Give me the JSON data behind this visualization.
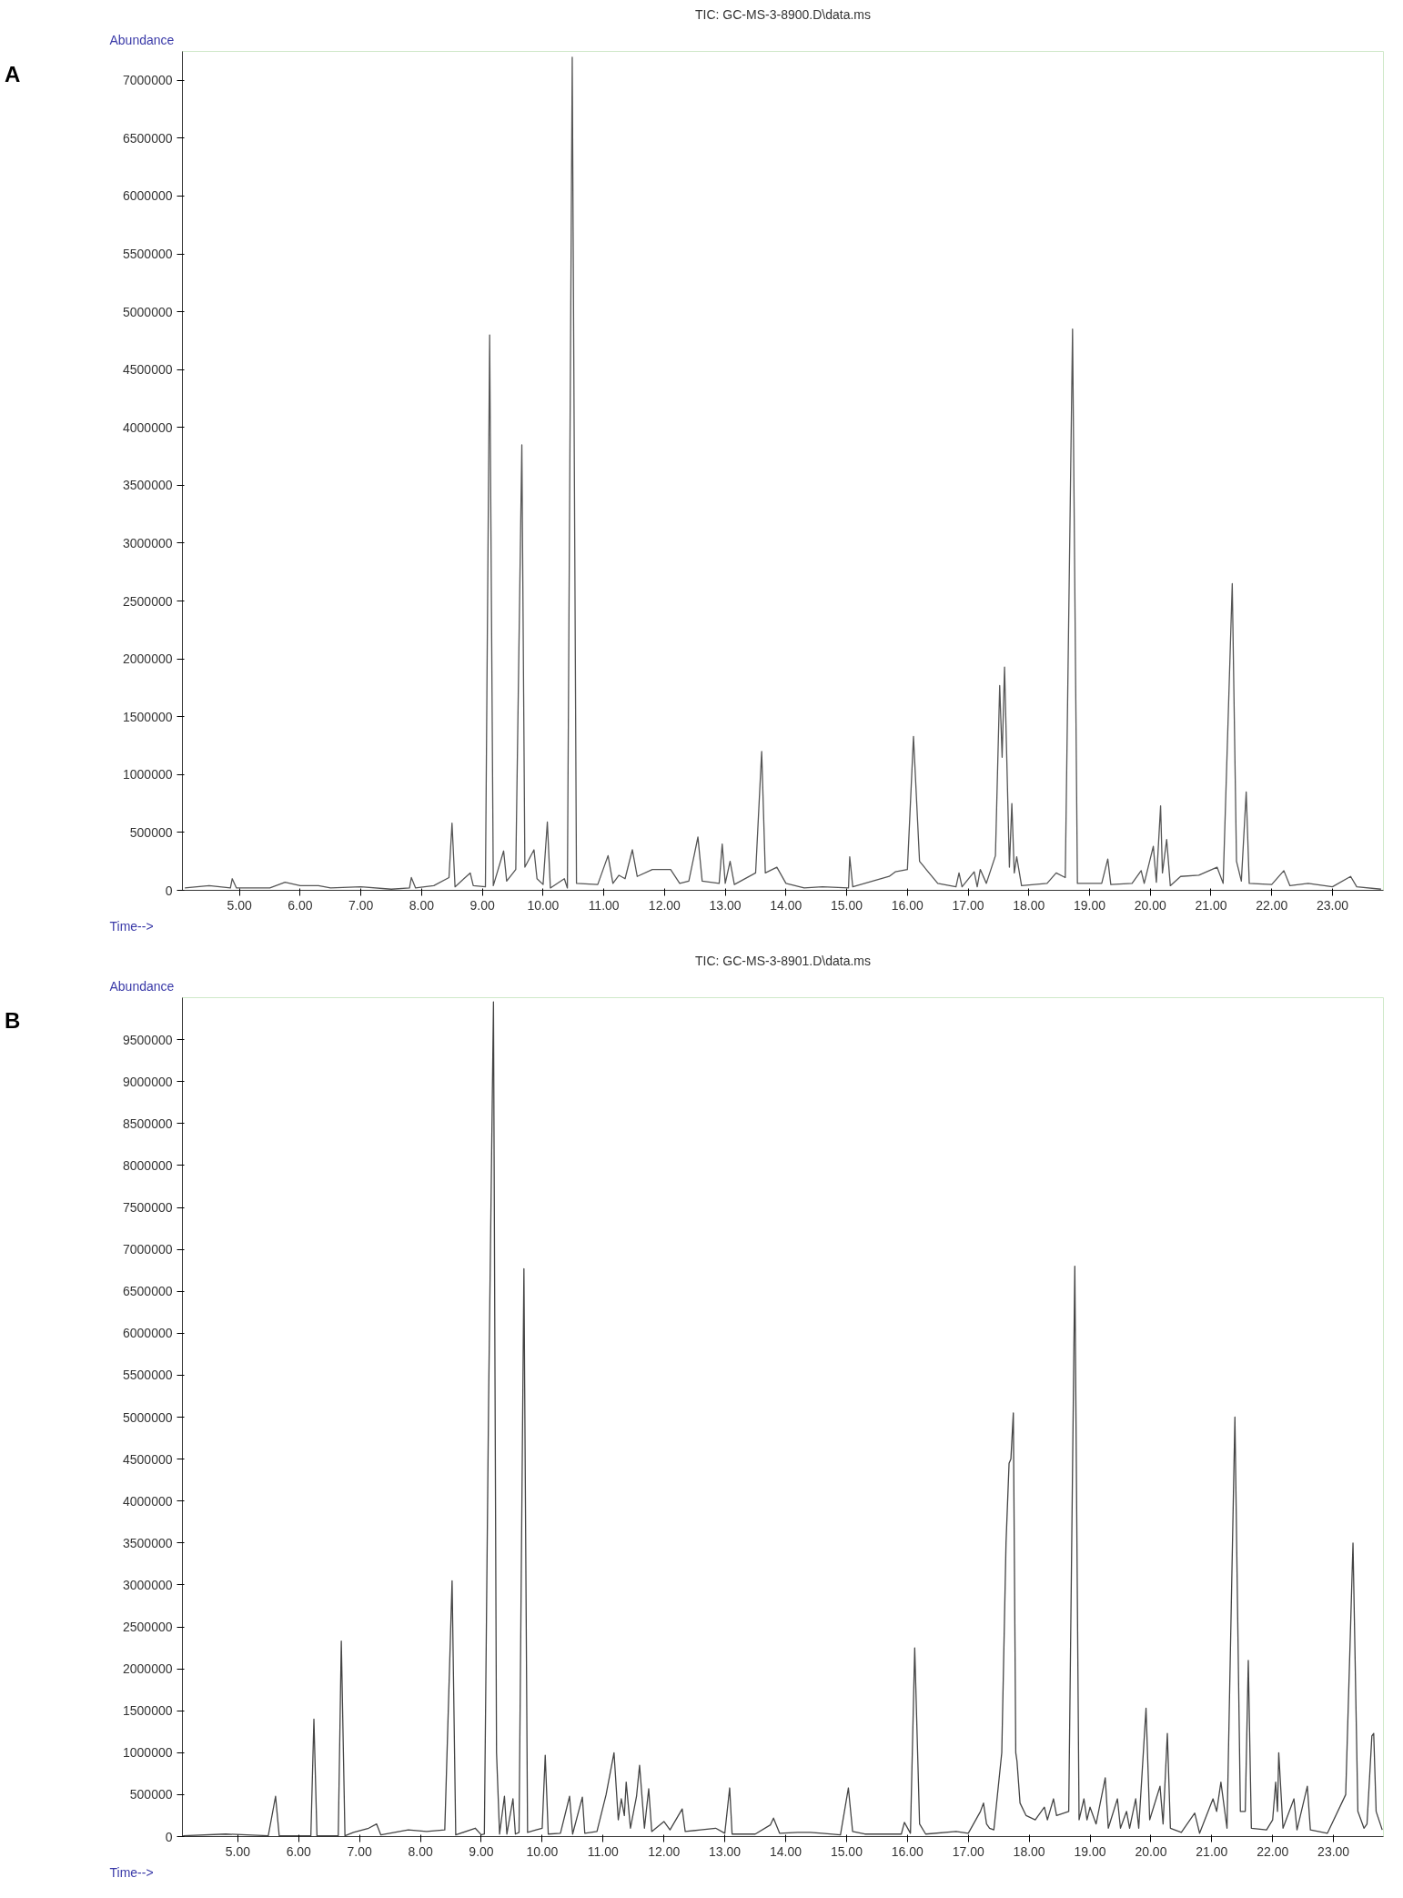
{
  "chart_data": [
    {
      "type": "line",
      "title": "TIC: GC-MS-3-8900.D\\data.ms",
      "xlabel": "Time-->",
      "ylabel": "Abundance",
      "annotations": [
        "A"
      ],
      "grid": false,
      "marker": "none",
      "line_style": "solid",
      "xlim": [
        4.06,
        23.84
      ],
      "ylim": [
        0,
        7250000
      ],
      "xticks": [
        {
          "value": 5,
          "label": "5.00"
        },
        {
          "value": 6,
          "label": "6.00"
        },
        {
          "value": 7,
          "label": "7.00"
        },
        {
          "value": 8,
          "label": "8.00"
        },
        {
          "value": 9,
          "label": "9.00"
        },
        {
          "value": 10,
          "label": "10.00"
        },
        {
          "value": 11,
          "label": "11.00"
        },
        {
          "value": 12,
          "label": "12.00"
        },
        {
          "value": 13,
          "label": "13.00"
        },
        {
          "value": 14,
          "label": "14.00"
        },
        {
          "value": 15,
          "label": "15.00"
        },
        {
          "value": 16,
          "label": "16.00"
        },
        {
          "value": 17,
          "label": "17.00"
        },
        {
          "value": 18,
          "label": "18.00"
        },
        {
          "value": 19,
          "label": "19.00"
        },
        {
          "value": 20,
          "label": "20.00"
        },
        {
          "value": 21,
          "label": "21.00"
        },
        {
          "value": 22,
          "label": "22.00"
        },
        {
          "value": 23,
          "label": "23.00"
        }
      ],
      "yticks": [
        0,
        500000,
        1000000,
        1500000,
        2000000,
        2500000,
        3000000,
        3500000,
        4000000,
        4500000,
        5000000,
        5500000,
        6000000,
        6500000,
        7000000
      ],
      "x": [
        4.1,
        4.5,
        4.85,
        4.88,
        4.95,
        5.5,
        5.75,
        6.0,
        6.3,
        6.5,
        7.0,
        7.5,
        7.8,
        7.83,
        7.9,
        8.2,
        8.45,
        8.5,
        8.55,
        8.8,
        8.85,
        9.05,
        9.12,
        9.18,
        9.35,
        9.4,
        9.55,
        9.65,
        9.7,
        9.85,
        9.9,
        10.0,
        10.07,
        10.12,
        10.35,
        10.4,
        10.48,
        10.55,
        10.9,
        11.07,
        11.15,
        11.25,
        11.35,
        11.47,
        11.55,
        11.8,
        12.1,
        12.25,
        12.4,
        12.55,
        12.62,
        12.9,
        12.95,
        13.0,
        13.08,
        13.15,
        13.5,
        13.6,
        13.66,
        13.85,
        14.0,
        14.3,
        14.6,
        15.03,
        15.05,
        15.1,
        15.7,
        15.8,
        16.0,
        16.1,
        16.2,
        16.5,
        16.8,
        16.85,
        16.9,
        17.1,
        17.15,
        17.2,
        17.3,
        17.45,
        17.52,
        17.56,
        17.6,
        17.68,
        17.72,
        17.76,
        17.8,
        17.88,
        18.3,
        18.45,
        18.6,
        18.72,
        18.8,
        19.2,
        19.3,
        19.35,
        19.7,
        19.85,
        19.9,
        20.05,
        20.1,
        20.17,
        20.2,
        20.27,
        20.33,
        20.5,
        20.8,
        21.1,
        21.2,
        21.35,
        21.42,
        21.5,
        21.58,
        21.63,
        22.0,
        22.2,
        22.3,
        22.6,
        23.0,
        23.3,
        23.4,
        23.8
      ],
      "series": [
        {
          "color": "#555555",
          "values": [
            20000,
            40000,
            20000,
            100000,
            20000,
            20000,
            70000,
            40000,
            40000,
            20000,
            30000,
            10000,
            20000,
            110000,
            20000,
            40000,
            110000,
            580000,
            30000,
            150000,
            40000,
            30000,
            4800000,
            40000,
            340000,
            80000,
            180000,
            3850000,
            200000,
            350000,
            100000,
            50000,
            590000,
            20000,
            100000,
            20000,
            7200000,
            60000,
            50000,
            300000,
            60000,
            130000,
            100000,
            350000,
            120000,
            180000,
            180000,
            60000,
            80000,
            460000,
            80000,
            60000,
            400000,
            60000,
            250000,
            50000,
            150000,
            1200000,
            150000,
            200000,
            60000,
            20000,
            30000,
            20000,
            290000,
            30000,
            120000,
            160000,
            180000,
            1330000,
            250000,
            60000,
            30000,
            150000,
            30000,
            160000,
            30000,
            180000,
            60000,
            300000,
            1770000,
            1150000,
            1930000,
            200000,
            750000,
            150000,
            290000,
            40000,
            60000,
            150000,
            110000,
            4850000,
            60000,
            60000,
            270000,
            50000,
            60000,
            170000,
            60000,
            380000,
            70000,
            730000,
            150000,
            440000,
            40000,
            120000,
            130000,
            200000,
            60000,
            2650000,
            250000,
            80000,
            850000,
            60000,
            50000,
            170000,
            40000,
            60000,
            30000,
            120000,
            30000,
            10000
          ]
        }
      ]
    },
    {
      "type": "line",
      "title": "TIC: GC-MS-3-8901.D\\data.ms",
      "xlabel": "Time-->",
      "ylabel": "Abundance",
      "annotations": [
        "B"
      ],
      "grid": false,
      "marker": "none",
      "line_style": "solid",
      "xlim": [
        4.09,
        23.82
      ],
      "ylim": [
        0,
        10000000
      ],
      "xticks": [
        {
          "value": 5,
          "label": "5.00"
        },
        {
          "value": 6,
          "label": "6.00"
        },
        {
          "value": 7,
          "label": "7.00"
        },
        {
          "value": 8,
          "label": "8.00"
        },
        {
          "value": 9,
          "label": "9.00"
        },
        {
          "value": 10,
          "label": "10.00"
        },
        {
          "value": 11,
          "label": "11.00"
        },
        {
          "value": 12,
          "label": "12.00"
        },
        {
          "value": 13,
          "label": "13.00"
        },
        {
          "value": 14,
          "label": "14.00"
        },
        {
          "value": 15,
          "label": "15.00"
        },
        {
          "value": 16,
          "label": "16.00"
        },
        {
          "value": 17,
          "label": "17.00"
        },
        {
          "value": 18,
          "label": "18.00"
        },
        {
          "value": 19,
          "label": "19.00"
        },
        {
          "value": 20,
          "label": "20.00"
        },
        {
          "value": 21,
          "label": "21.00"
        },
        {
          "value": 22,
          "label": "22.00"
        },
        {
          "value": 23,
          "label": "23.00"
        }
      ],
      "yticks": [
        0,
        500000,
        1000000,
        1500000,
        2000000,
        2500000,
        3000000,
        3500000,
        4000000,
        4500000,
        5000000,
        5500000,
        6000000,
        6500000,
        7000000,
        7500000,
        8000000,
        8500000,
        9000000,
        9500000
      ],
      "x": [
        4.1,
        4.8,
        5.5,
        5.62,
        5.68,
        6.2,
        6.25,
        6.3,
        6.65,
        6.7,
        6.76,
        6.9,
        7.15,
        7.28,
        7.35,
        7.8,
        8.1,
        8.4,
        8.52,
        8.58,
        8.9,
        9.0,
        9.05,
        9.12,
        9.2,
        9.25,
        9.3,
        9.38,
        9.42,
        9.52,
        9.56,
        9.62,
        9.7,
        9.76,
        9.9,
        10.0,
        10.05,
        10.1,
        10.3,
        10.45,
        10.5,
        10.66,
        10.7,
        10.9,
        11.05,
        11.18,
        11.25,
        11.3,
        11.35,
        11.38,
        11.45,
        11.55,
        11.6,
        11.68,
        11.75,
        11.8,
        12.0,
        12.1,
        12.3,
        12.35,
        12.6,
        12.85,
        13.0,
        13.08,
        13.12,
        13.5,
        13.75,
        13.8,
        13.9,
        14.2,
        14.4,
        14.6,
        14.9,
        15.03,
        15.1,
        15.3,
        15.9,
        15.95,
        16.05,
        16.12,
        16.2,
        16.3,
        16.8,
        17.0,
        17.2,
        17.25,
        17.3,
        17.35,
        17.42,
        17.55,
        17.62,
        17.67,
        17.7,
        17.74,
        17.78,
        17.8,
        17.85,
        17.95,
        18.1,
        18.25,
        18.3,
        18.4,
        18.45,
        18.65,
        18.75,
        18.82,
        18.9,
        18.95,
        19.0,
        19.1,
        19.25,
        19.3,
        19.45,
        19.5,
        19.6,
        19.65,
        19.75,
        19.8,
        19.92,
        19.98,
        20.15,
        20.2,
        20.27,
        20.32,
        20.5,
        20.72,
        20.8,
        21.02,
        21.08,
        21.15,
        21.25,
        21.38,
        21.47,
        21.55,
        21.6,
        21.65,
        21.9,
        22.0,
        22.05,
        22.08,
        22.1,
        22.17,
        22.35,
        22.4,
        22.57,
        22.62,
        22.9,
        23.2,
        23.32,
        23.4,
        23.5,
        23.55,
        23.63,
        23.66,
        23.7,
        23.8
      ],
      "series": [
        {
          "color": "#444444",
          "values": [
            10000,
            30000,
            10000,
            480000,
            10000,
            10000,
            1400000,
            10000,
            10000,
            2330000,
            10000,
            50000,
            100000,
            150000,
            20000,
            80000,
            60000,
            80000,
            3050000,
            20000,
            100000,
            20000,
            30000,
            5200000,
            9950000,
            1000000,
            30000,
            480000,
            30000,
            450000,
            30000,
            50000,
            6770000,
            50000,
            80000,
            100000,
            970000,
            30000,
            40000,
            480000,
            30000,
            470000,
            40000,
            60000,
            500000,
            1000000,
            200000,
            450000,
            250000,
            650000,
            100000,
            480000,
            850000,
            100000,
            570000,
            60000,
            180000,
            80000,
            330000,
            60000,
            80000,
            100000,
            40000,
            580000,
            30000,
            30000,
            140000,
            220000,
            40000,
            50000,
            50000,
            40000,
            20000,
            580000,
            60000,
            30000,
            30000,
            170000,
            40000,
            2250000,
            150000,
            30000,
            60000,
            40000,
            300000,
            400000,
            150000,
            100000,
            80000,
            1000000,
            3500000,
            4450000,
            4500000,
            5050000,
            1000000,
            900000,
            400000,
            250000,
            200000,
            350000,
            200000,
            450000,
            250000,
            300000,
            6800000,
            200000,
            450000,
            200000,
            350000,
            150000,
            700000,
            100000,
            450000,
            100000,
            300000,
            100000,
            450000,
            100000,
            1530000,
            200000,
            600000,
            150000,
            1230000,
            100000,
            50000,
            280000,
            40000,
            450000,
            300000,
            650000,
            100000,
            5000000,
            300000,
            300000,
            2100000,
            100000,
            80000,
            200000,
            650000,
            300000,
            1000000,
            100000,
            450000,
            80000,
            600000,
            80000,
            40000,
            500000,
            3500000,
            300000,
            100000,
            150000,
            1200000,
            1230000,
            300000,
            80000
          ]
        }
      ]
    }
  ]
}
